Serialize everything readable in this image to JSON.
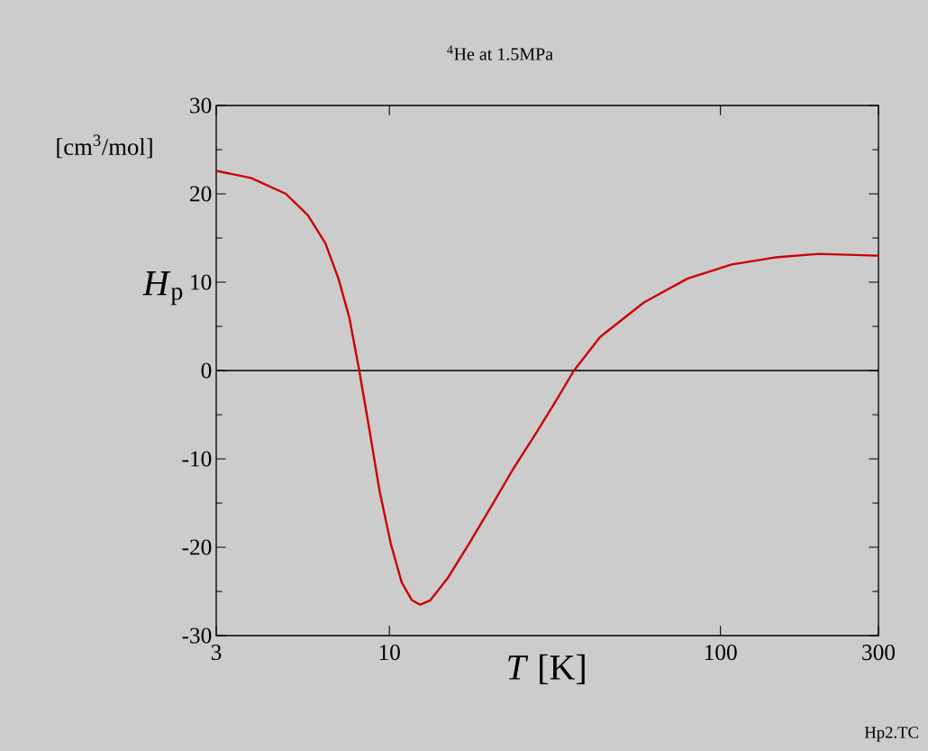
{
  "chart_data": {
    "type": "line",
    "title": "$^{4}$He at 1.5MPa",
    "xlabel": "*T* [K]",
    "ylabel": "*H*$_{p}$",
    "annotations": [
      "[cm$^{3}$/mol]",
      "Hp2.TC"
    ],
    "log": "x",
    "xlim": [
      3,
      300
    ],
    "xticks": [
      3,
      10,
      100,
      300
    ],
    "ylim": [
      -30,
      30
    ],
    "yticks": [
      -30,
      -20,
      -10,
      0,
      10,
      20,
      30
    ],
    "marker": "none",
    "line_style": "solid",
    "ref_lines": [
      {
        "axis": "y",
        "value": 0,
        "color": "#000000"
      }
    ],
    "series": [
      {
        "color": "#cc0000",
        "x": [
          3,
          3.82,
          4.87,
          5.67,
          6.41,
          7.02,
          7.57,
          8.11,
          8.67,
          9.35,
          10.1,
          10.9,
          11.7,
          12.4,
          13.3,
          15.0,
          17.4,
          20.3,
          23.6,
          27.5,
          32.0,
          36.1,
          43.3,
          58.7,
          79.4,
          108,
          146,
          198,
          300
        ],
        "values": [
          22.6,
          21.8,
          20.0,
          17.6,
          14.4,
          10.4,
          6.0,
          0,
          -6.3,
          -13.7,
          -19.6,
          -24.0,
          -26.0,
          -26.5,
          -26.0,
          -23.5,
          -19.6,
          -15.4,
          -11.2,
          -7.3,
          -3.3,
          0,
          3.8,
          7.7,
          10.4,
          12.0,
          12.8,
          13.2,
          13.0
        ]
      }
    ]
  }
}
